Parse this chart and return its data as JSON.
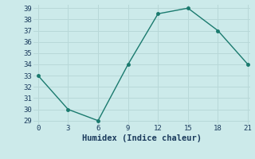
{
  "x": [
    0,
    3,
    6,
    9,
    12,
    15,
    18,
    21
  ],
  "y": [
    33,
    30,
    29,
    34,
    38.5,
    39,
    37,
    34
  ],
  "xlabel": "Humidex (Indice chaleur)",
  "ylim_min": 29,
  "ylim_max": 39,
  "xlim_min": 0,
  "xlim_max": 21,
  "yticks": [
    29,
    30,
    31,
    32,
    33,
    34,
    35,
    36,
    37,
    38,
    39
  ],
  "xticks": [
    0,
    3,
    6,
    9,
    12,
    15,
    18,
    21
  ],
  "line_color": "#1a7a6e",
  "bg_color": "#cceaea",
  "grid_color": "#b8d8d8",
  "font_color": "#1a3a5c",
  "tick_fontsize": 6.5,
  "xlabel_fontsize": 7.5
}
